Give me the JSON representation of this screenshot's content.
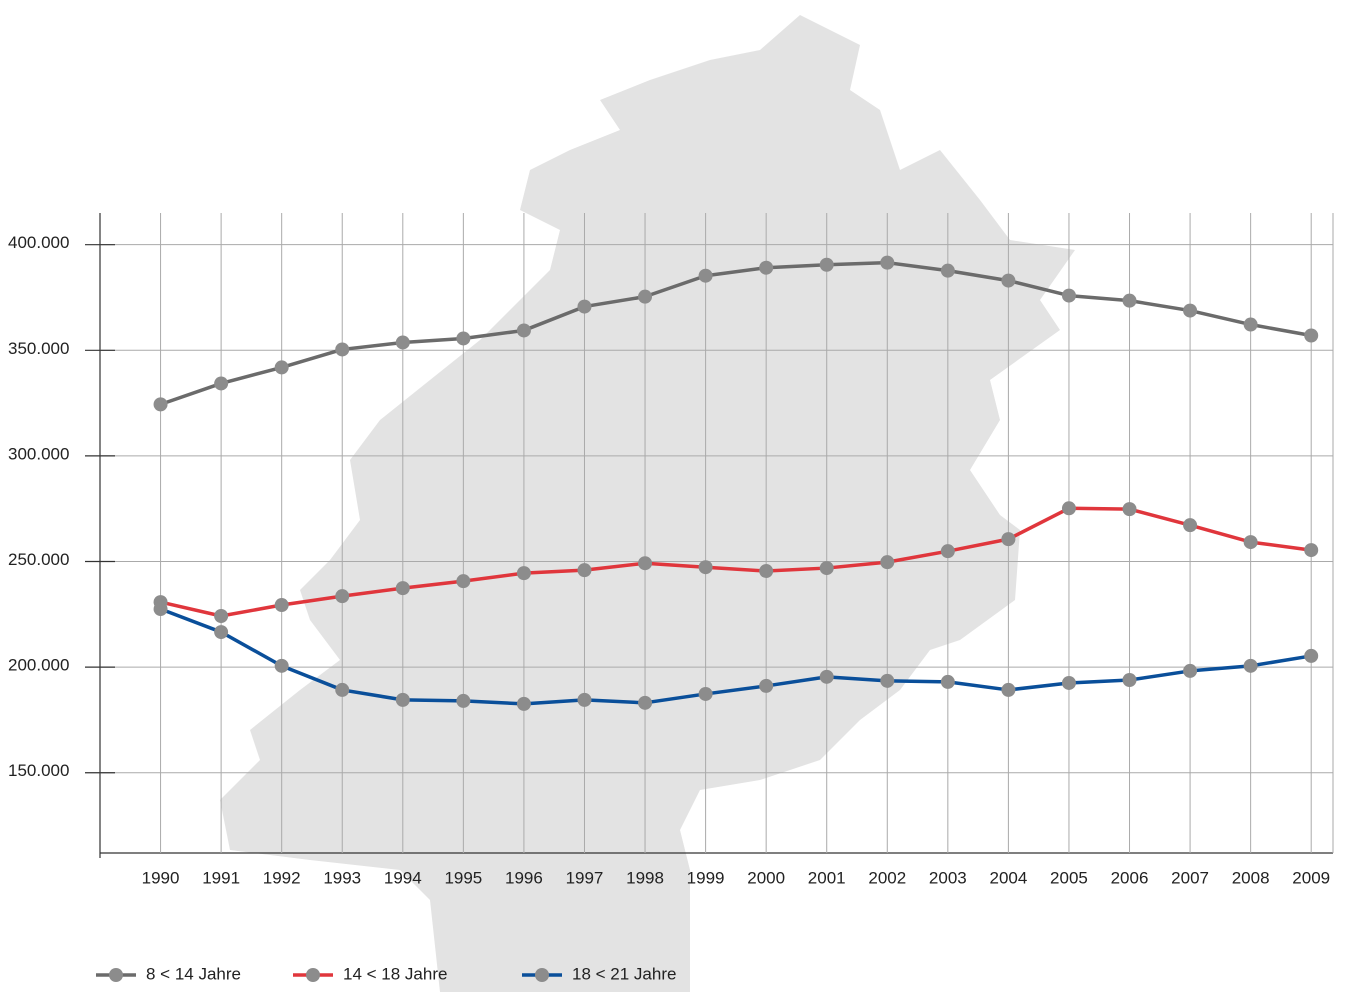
{
  "chart_data": {
    "type": "line",
    "x": [
      1990,
      1991,
      1992,
      1993,
      1994,
      1995,
      1996,
      1997,
      1998,
      1999,
      2000,
      2001,
      2002,
      2003,
      2004,
      2005,
      2006,
      2007,
      2008,
      2009
    ],
    "xlim": [
      1989,
      2009.36
    ],
    "xticks": [
      1990,
      1991,
      1992,
      1993,
      1994,
      1995,
      1996,
      1997,
      1998,
      1999,
      2000,
      2001,
      2002,
      2003,
      2004,
      2005,
      2006,
      2007,
      2008,
      2009
    ],
    "ylim": [
      112000,
      415000
    ],
    "yticks": [
      {
        "value": 150000,
        "label": "150.000"
      },
      {
        "value": 200000,
        "label": "200.000"
      },
      {
        "value": 250000,
        "label": "250.000"
      },
      {
        "value": 300000,
        "label": "300.000"
      },
      {
        "value": 350000,
        "label": "350.000"
      },
      {
        "value": 400000,
        "label": "400.000"
      }
    ],
    "grid": true,
    "legend": "bottom-left",
    "marker_color": "#8c8c8c",
    "series": [
      {
        "name": "8 < 14 Jahre",
        "color": "#6b6b6b",
        "values": [
          324400,
          334300,
          341900,
          350400,
          353700,
          355600,
          359400,
          370700,
          375400,
          385300,
          389100,
          390500,
          391500,
          387700,
          383000,
          375900,
          373500,
          368800,
          362200,
          357000
        ]
      },
      {
        "name": "14 < 18 Jahre",
        "color": "#e0363c",
        "values": [
          230800,
          224200,
          229400,
          233600,
          237400,
          240700,
          244500,
          245900,
          249200,
          247300,
          245500,
          246900,
          249700,
          254900,
          260600,
          275200,
          274800,
          267200,
          259200,
          255400
        ]
      },
      {
        "name": "18 < 21 Jahre",
        "color": "#0a4f9a",
        "values": [
          227500,
          216600,
          200600,
          189200,
          184500,
          184000,
          182600,
          184500,
          183100,
          187300,
          191100,
          195400,
          193500,
          193000,
          189200,
          192500,
          193900,
          198200,
          200600,
          205300
        ]
      }
    ]
  }
}
